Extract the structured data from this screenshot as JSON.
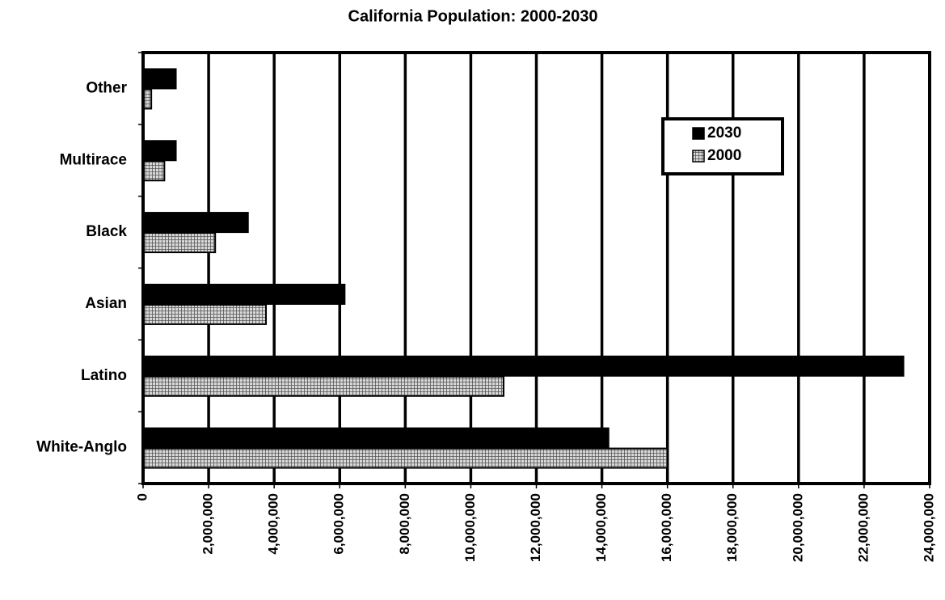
{
  "chart_data": {
    "type": "hbar",
    "title": "California Population: 2000-2030",
    "categories": [
      "Other",
      "Multirace",
      "Black",
      "Asian",
      "Latino",
      "White-Anglo"
    ],
    "series": [
      {
        "name": "2030",
        "color": "#000000",
        "values": [
          1000000,
          1000000,
          3200000,
          6150000,
          23200000,
          14200000
        ]
      },
      {
        "name": "2000",
        "color": "#d8d8d8",
        "values": [
          250000,
          650000,
          2200000,
          3750000,
          11000000,
          16000000
        ]
      }
    ],
    "xlim": [
      0,
      24000000
    ],
    "xticks": [
      0,
      {
        "value": 2000000,
        "label": "2,000,000"
      },
      {
        "value": 4000000,
        "label": "4,000,000"
      },
      {
        "value": 6000000,
        "label": "6,000,000"
      },
      {
        "value": 8000000,
        "label": "8,000,000"
      },
      {
        "value": 10000000,
        "label": "10,000,000"
      },
      {
        "value": 12000000,
        "label": "12,000,000"
      },
      {
        "value": 14000000,
        "label": "14,000,000"
      },
      {
        "value": 16000000,
        "label": "16,000,000"
      },
      {
        "value": 18000000,
        "label": "18,000,000"
      },
      {
        "value": 20000000,
        "label": "20,000,000"
      },
      {
        "value": 22000000,
        "label": "22,000,000"
      },
      {
        "value": 24000000,
        "label": "24,000,000"
      }
    ],
    "grid": true,
    "legend": "upper-right"
  }
}
